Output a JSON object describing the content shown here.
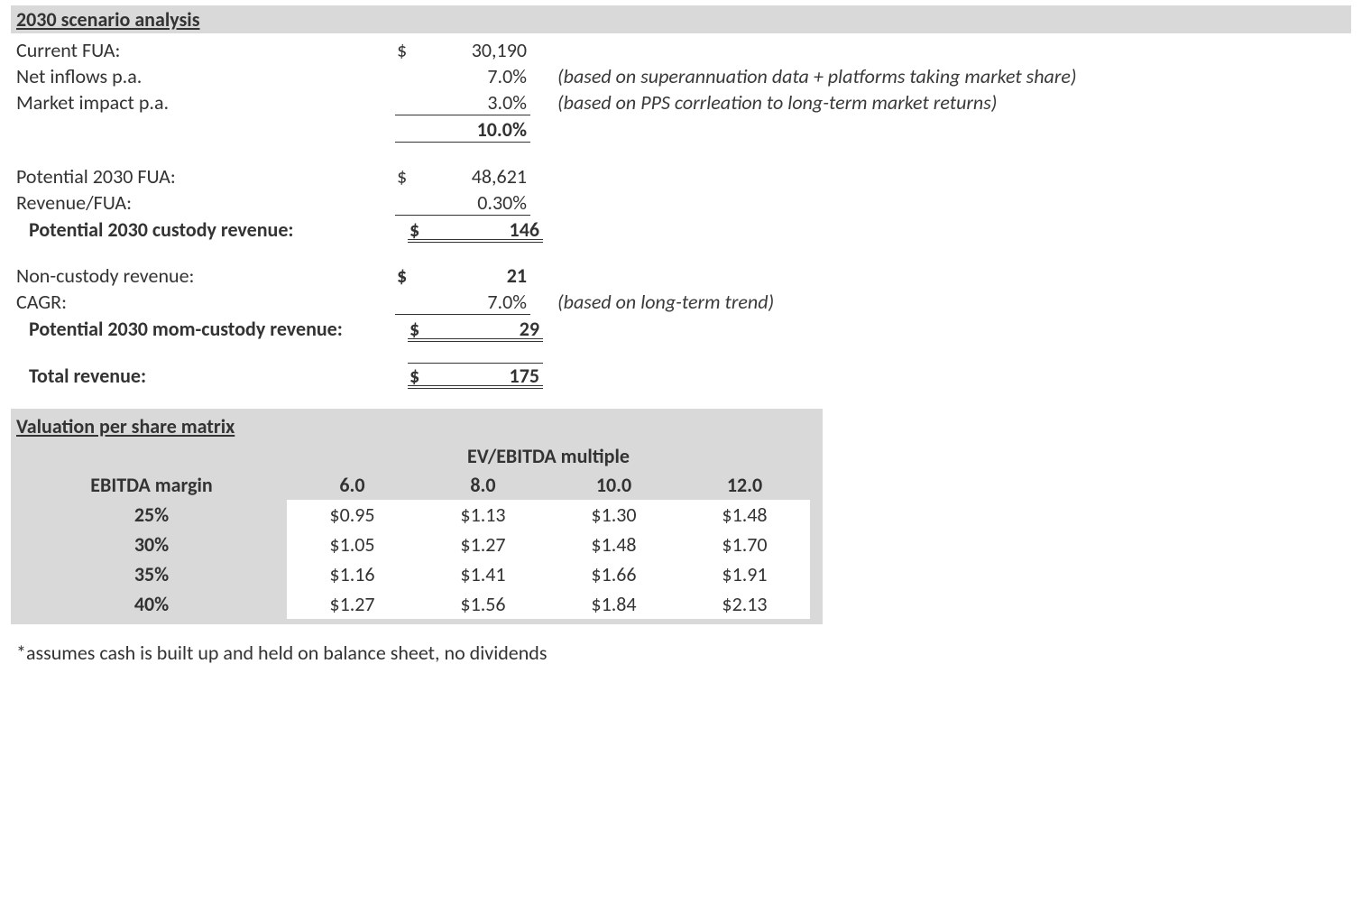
{
  "scenario": {
    "title": "2030 scenario analysis",
    "rows": {
      "current_fua": {
        "label": "Current FUA:",
        "currency": "$",
        "value": "30,190",
        "note": ""
      },
      "net_inflows": {
        "label": "Net inflows p.a.",
        "currency": "",
        "value": "7.0%",
        "note": "(based on superannuation data + platforms taking market share)"
      },
      "market_impact": {
        "label": "Market impact p.a.",
        "currency": "",
        "value": "3.0%",
        "note": "(based on PPS corrleation to long-term market returns)"
      },
      "growth_total": {
        "label": "",
        "currency": "",
        "value": "10.0%",
        "note": ""
      },
      "potential_fua": {
        "label": "Potential 2030 FUA:",
        "currency": "$",
        "value": "48,621",
        "note": ""
      },
      "revenue_fua": {
        "label": "Revenue/FUA:",
        "currency": "",
        "value": "0.30%",
        "note": ""
      },
      "custody_revenue": {
        "label": "Potential 2030 custody revenue:",
        "currency": "$",
        "value": "146",
        "note": ""
      },
      "noncustody_revenue": {
        "label": "Non-custody revenue:",
        "currency": "$",
        "value": "21",
        "note": ""
      },
      "cagr": {
        "label": "CAGR:",
        "currency": "",
        "value": "7.0%",
        "note": "(based on long-term trend)"
      },
      "noncustody_2030": {
        "label": "Potential 2030 mom-custody revenue:",
        "currency": "$",
        "value": "29",
        "note": ""
      },
      "total_revenue": {
        "label": "Total revenue:",
        "currency": "$",
        "value": "175",
        "note": ""
      }
    }
  },
  "matrix": {
    "title": "Valuation per share matrix",
    "super_header": "EV/EBITDA multiple",
    "row_header_label": "EBITDA margin",
    "col_headers": [
      "6.0",
      "8.0",
      "10.0",
      "12.0"
    ],
    "row_headers": [
      "25%",
      "30%",
      "35%",
      "40%"
    ],
    "cells": [
      [
        "$0.95",
        "$1.13",
        "$1.30",
        "$1.48"
      ],
      [
        "$1.05",
        "$1.27",
        "$1.48",
        "$1.70"
      ],
      [
        "$1.16",
        "$1.41",
        "$1.66",
        "$1.91"
      ],
      [
        "$1.27",
        "$1.56",
        "$1.84",
        "$2.13"
      ]
    ],
    "header_bg": "#d9d9d9",
    "cell_bg": "#ffffff"
  },
  "footnote": "*assumes cash is built up and held on balance sheet, no dividends"
}
